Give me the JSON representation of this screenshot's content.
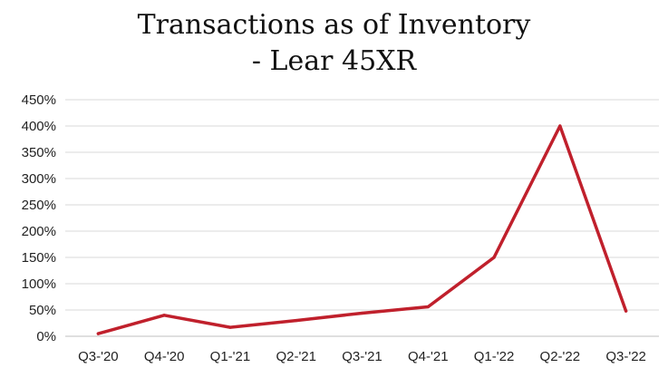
{
  "chart_data": {
    "type": "line",
    "title_lines": [
      "Transactions as of Inventory",
      "- Lear 45XR"
    ],
    "categories": [
      "Q3-'20",
      "Q4-'20",
      "Q1-'21",
      "Q2-'21",
      "Q3-'21",
      "Q4-'21",
      "Q1-'22",
      "Q2-'22",
      "Q3-'22"
    ],
    "series": [
      {
        "values": [
          5,
          40,
          17,
          30,
          44,
          56,
          150,
          400,
          48
        ],
        "color": "#c0202c"
      }
    ],
    "yticks": [
      "0%",
      "50%",
      "100%",
      "150%",
      "200%",
      "250%",
      "300%",
      "350%",
      "400%",
      "450%"
    ],
    "ylim": [
      0,
      450
    ],
    "grid": true,
    "xlabel": "",
    "ylabel": ""
  }
}
